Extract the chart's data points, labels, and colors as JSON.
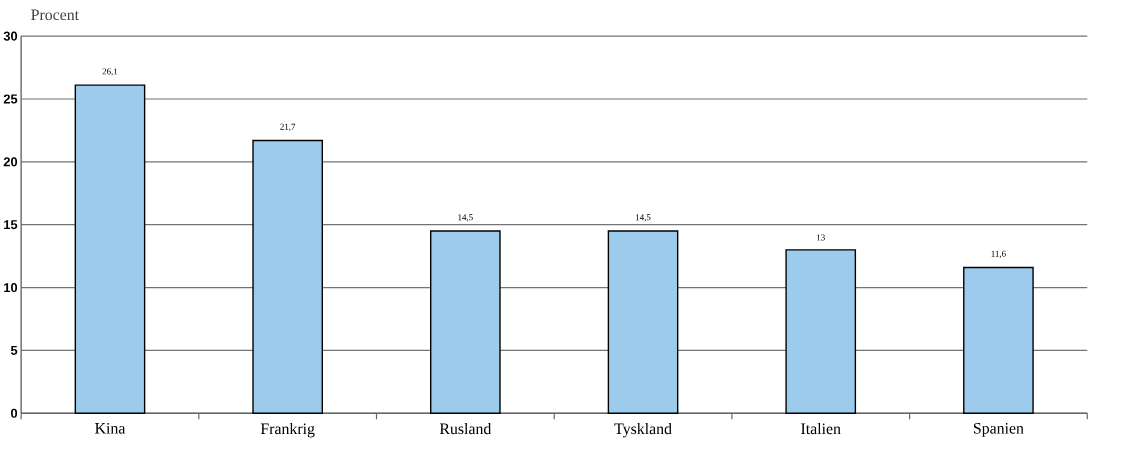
{
  "chart_data": {
    "type": "bar",
    "ylabel": "Procent",
    "categories": [
      "Kina",
      "Frankrig",
      "Rusland",
      "Tyskland",
      "Italien",
      "Spanien"
    ],
    "values": [
      26.1,
      21.7,
      14.5,
      14.5,
      13,
      11.6
    ],
    "value_labels": [
      "26,1",
      "21,7",
      "14,5",
      "14,5",
      "13",
      "11,6"
    ],
    "color": "#9dcbeb",
    "ylim": [
      0,
      30
    ],
    "yticks": [
      0,
      5,
      10,
      15,
      20,
      25,
      30
    ],
    "grid": "y"
  }
}
